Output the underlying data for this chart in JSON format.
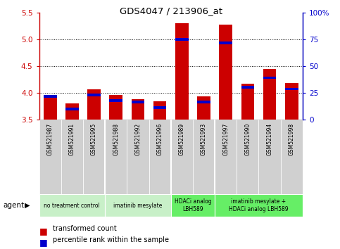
{
  "title": "GDS4047 / 213906_at",
  "samples": [
    "GSM521987",
    "GSM521991",
    "GSM521995",
    "GSM521988",
    "GSM521992",
    "GSM521996",
    "GSM521989",
    "GSM521993",
    "GSM521997",
    "GSM521990",
    "GSM521994",
    "GSM521998"
  ],
  "red_values": [
    3.95,
    3.8,
    4.07,
    3.96,
    3.88,
    3.84,
    5.3,
    3.93,
    5.27,
    4.17,
    4.45,
    4.18
  ],
  "blue_values": [
    3.93,
    3.7,
    3.96,
    3.85,
    3.83,
    3.72,
    5.0,
    3.83,
    4.93,
    4.1,
    4.28,
    4.07
  ],
  "ylim": [
    3.5,
    5.5
  ],
  "yticks": [
    3.5,
    4.0,
    4.5,
    5.0,
    5.5
  ],
  "y2ticks": [
    0,
    25,
    50,
    75,
    100
  ],
  "y2ticklabels": [
    "0",
    "25",
    "50",
    "75",
    "100%"
  ],
  "groups": [
    {
      "label": "no treatment control",
      "start": 0,
      "end": 3,
      "color": "#c8f0c8"
    },
    {
      "label": "imatinib mesylate",
      "start": 3,
      "end": 6,
      "color": "#c8f0c8"
    },
    {
      "label": "HDACi analog\nLBH589",
      "start": 6,
      "end": 8,
      "color": "#66ee66"
    },
    {
      "label": "imatinib mesylate +\nHDACi analog LBH589",
      "start": 8,
      "end": 12,
      "color": "#66ee66"
    }
  ],
  "agent_label": "agent",
  "legend_red": "transformed count",
  "legend_blue": "percentile rank within the sample",
  "bar_color_red": "#cc0000",
  "bar_color_blue": "#0000cc",
  "bar_width": 0.6,
  "tick_color_left": "#cc0000",
  "tick_color_right": "#0000cc",
  "background_color": "#ffffff",
  "sample_box_color": "#d0d0d0",
  "plot_bg": "#ffffff"
}
